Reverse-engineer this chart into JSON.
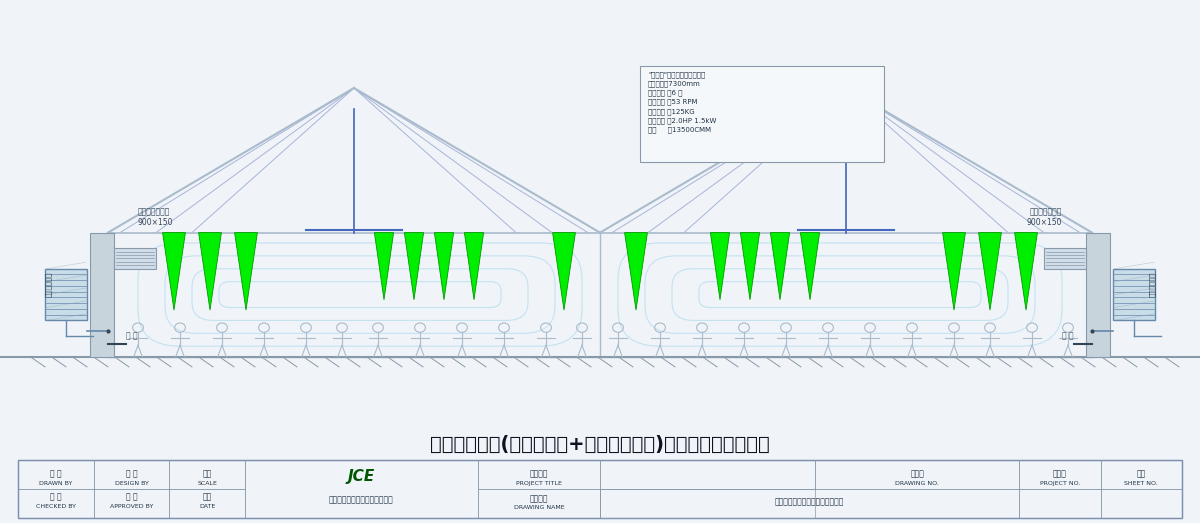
{
  "bg_color": "#f0f4f8",
  "drawing_bg": "#ffffff",
  "title": "车间扇机组合(工业大风扇+蒸发式冷风机)通风降温立面示意图",
  "title_fontsize": 14,
  "spec_box_text": "\"瑞彩风\"工业大风扇规格说明\n风扇直径：7300mm\n叶片数量 ：6 片\n风扇转速 ：53 RPM\n风扇重量 ：125KG\n风扇功率 ：2.0HP 1.5kW\n风量     ：13500CMM",
  "label_auto_vent_left": "自动能控送风口\n900×150",
  "label_auto_vent_right": "自动能控送风口\n900×150",
  "label_evap_cooler": "蒸发式冷风机",
  "label_window_left": "窗 户",
  "label_window_right": "窗 户",
  "footer_company": "广东嘉昌通风降温科技有限公司",
  "footer_drawing_name": "车间扇机组合通风降温立面示意图",
  "roof_line_color": "#aabbcc",
  "truss_line_color": "#8899cc",
  "wall_color": "#99aabb",
  "fan_blade_color": "#00ee00",
  "fan_blade_edge": "#009900",
  "airflow_color": "#b8ddf0",
  "rod_color": "#4466aa",
  "evap_color": "#99bbcc",
  "ground_hatch_color": "#8899aa",
  "person_color": "#aabbcc",
  "spec_box_bg": "#f8fbff",
  "spec_box_border": "#8899aa",
  "wall_block_color": "#99aaaa"
}
